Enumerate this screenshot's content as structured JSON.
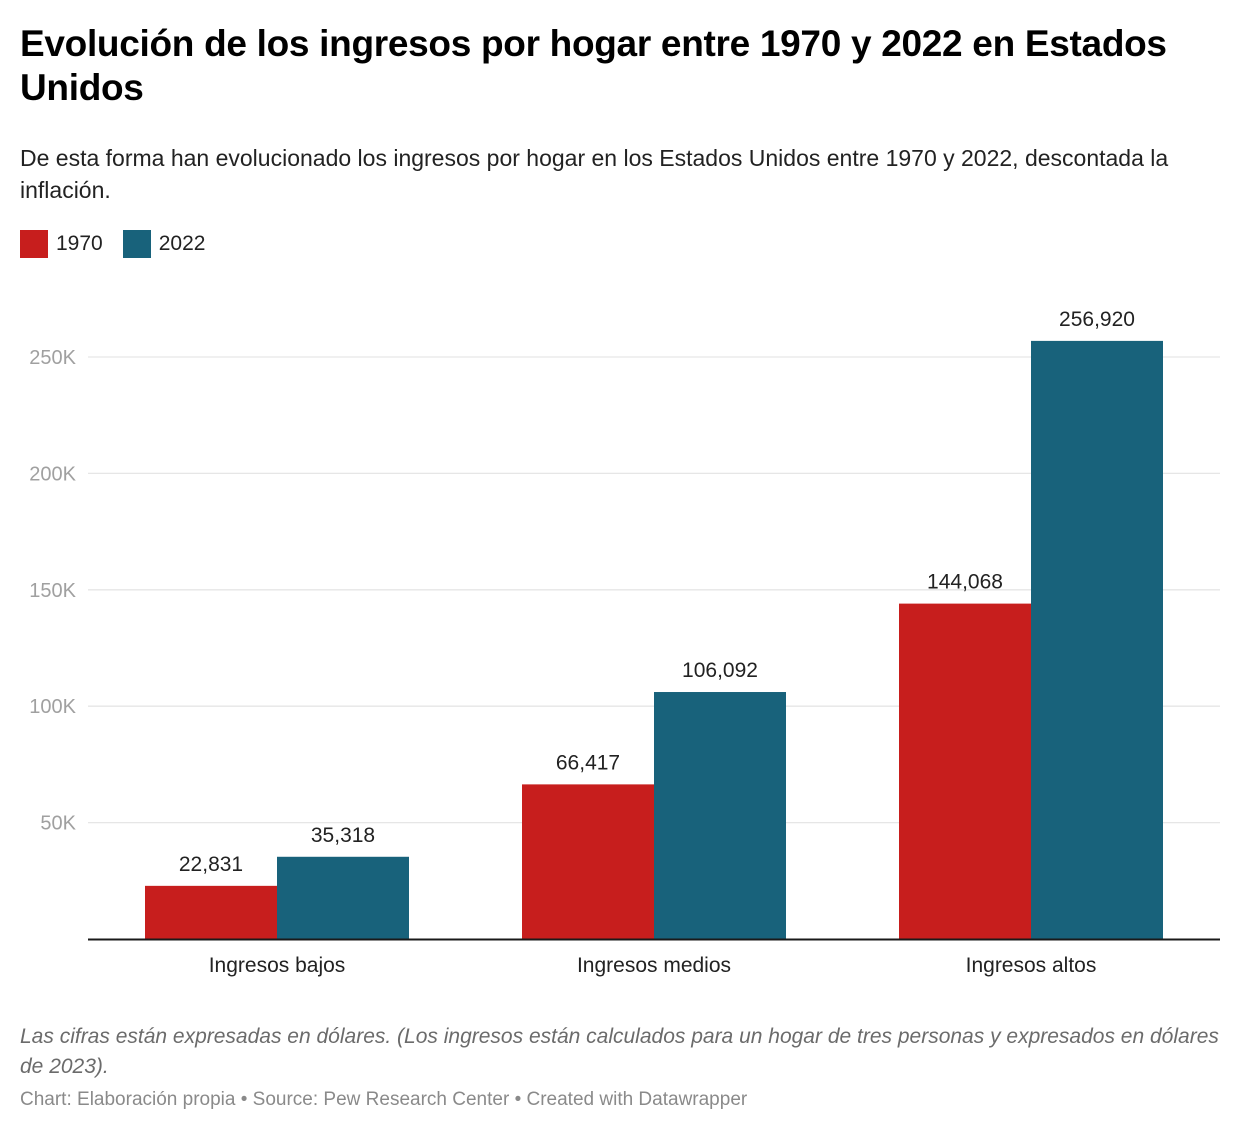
{
  "title": "Evolución de los ingresos por hogar entre 1970 y 2022 en Estados Unidos",
  "subtitle": "De esta forma han evolucionado los ingresos por hogar en los Estados Unidos entre 1970 y 2022, descontada la inflación.",
  "notes": "Las cifras están expresadas en dólares. (Los ingresos están calculados para un hogar de tres personas y expresados en dólares de 2023).",
  "footer": "Chart: Elaboración propia • Source: Pew Research Center • Created with Datawrapper",
  "colors": {
    "1970": "#c71e1d",
    "2022": "#18627b",
    "grid": "#e6e6e6",
    "axis": "#1a1a1a",
    "tick_label": "#a0a0a0",
    "label": "#222222"
  },
  "chart_data": {
    "type": "bar",
    "title": "Evolución de los ingresos por hogar entre 1970 y 2022 en Estados Unidos",
    "xlabel": "",
    "ylabel": "",
    "categories": [
      "Ingresos bajos",
      "Ingresos medios",
      "Ingresos altos"
    ],
    "series": [
      {
        "name": "1970",
        "color": "#c71e1d",
        "values": [
          22831,
          66417,
          144068
        ],
        "labels": [
          "22,831",
          "66,417",
          "144,068"
        ]
      },
      {
        "name": "2022",
        "color": "#18627b",
        "values": [
          35318,
          106092,
          256920
        ],
        "labels": [
          "35,318",
          "106,092",
          "256,920"
        ]
      }
    ],
    "ylim": [
      0,
      250000
    ],
    "yticks": [
      50000,
      100000,
      150000,
      200000,
      250000
    ],
    "ytick_labels": [
      "50K",
      "100K",
      "150K",
      "200K",
      "250K"
    ],
    "grid": true,
    "legend": "top-left",
    "data_labels": true
  }
}
